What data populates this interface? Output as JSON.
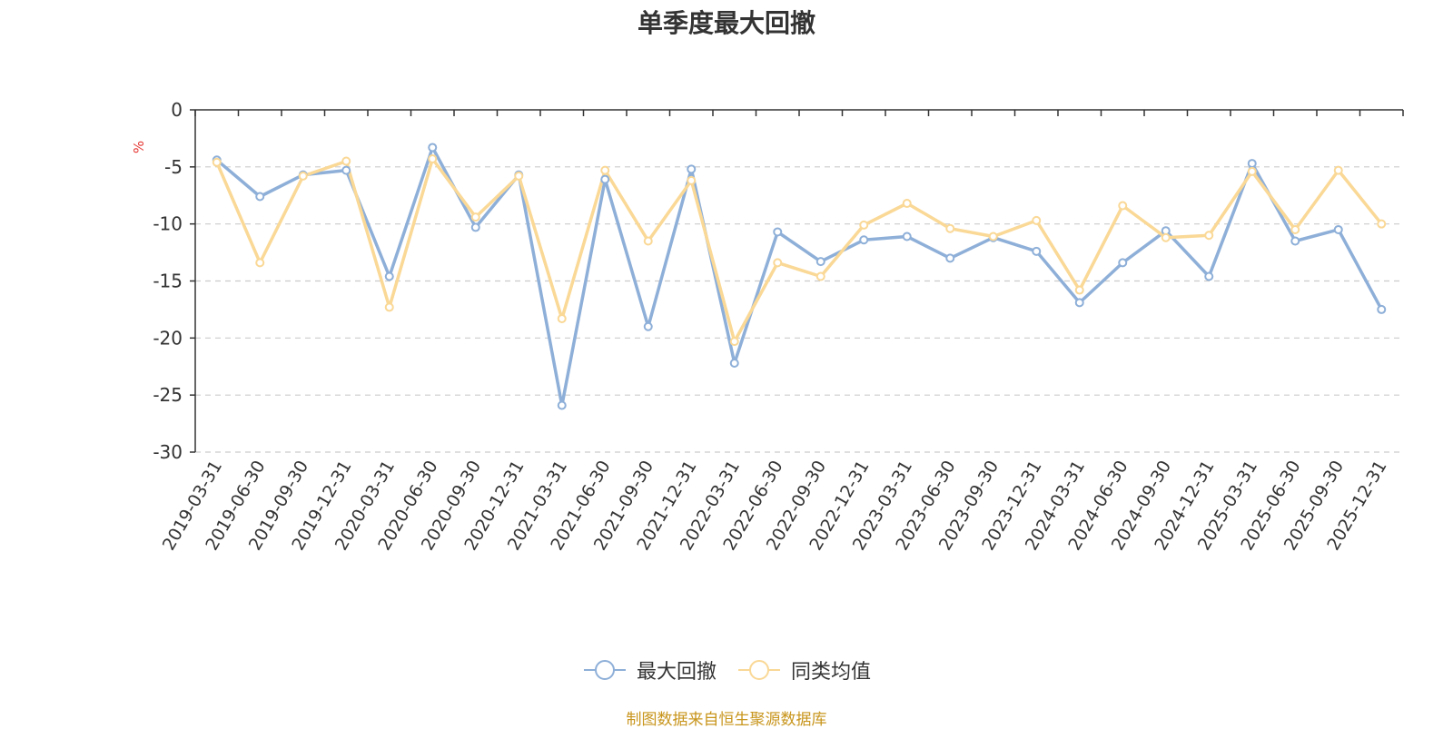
{
  "chart_data": {
    "type": "line",
    "title": "单季度最大回撤",
    "ylabel": "%",
    "ylim": [
      -30,
      0
    ],
    "yticks": [
      0,
      -5,
      -10,
      -15,
      -20,
      -25,
      -30
    ],
    "grid": true,
    "legend_position": "bottom-center",
    "categories": [
      "2019-03-31",
      "2019-06-30",
      "2019-09-30",
      "2019-12-31",
      "2020-03-31",
      "2020-06-30",
      "2020-09-30",
      "2020-12-31",
      "2021-03-31",
      "2021-06-30",
      "2021-09-30",
      "2021-12-31",
      "2022-03-31",
      "2022-06-30",
      "2022-09-30",
      "2022-12-31",
      "2023-03-31",
      "2023-06-30",
      "2023-09-30",
      "2023-12-31",
      "2024-03-31",
      "2024-06-30",
      "2024-09-30",
      "2024-12-31",
      "2025-03-31",
      "2025-06-30",
      "2025-09-30",
      "2025-12-31"
    ],
    "series": [
      {
        "name": "最大回撤",
        "color": "#8eafd8",
        "values": [
          -4.4,
          -7.6,
          -5.7,
          -5.3,
          -14.6,
          -3.3,
          -10.3,
          -5.7,
          -25.9,
          -6.1,
          -19.0,
          -5.2,
          -22.2,
          -10.7,
          -13.3,
          -11.4,
          -11.1,
          -13.0,
          -11.2,
          -12.4,
          -16.9,
          -13.4,
          -10.6,
          -14.6,
          -4.7,
          -11.5,
          -10.5,
          -17.5
        ]
      },
      {
        "name": "同类均值",
        "color": "#fad896",
        "values": [
          -4.6,
          -13.4,
          -5.8,
          -4.5,
          -17.3,
          -4.3,
          -9.4,
          -5.8,
          -18.3,
          -5.3,
          -11.5,
          -6.2,
          -20.3,
          -13.4,
          -14.6,
          -10.1,
          -8.2,
          -10.4,
          -11.1,
          -9.7,
          -15.8,
          -8.4,
          -11.2,
          -11.0,
          -5.4,
          -10.5,
          -5.3,
          -10.0
        ]
      }
    ]
  },
  "source_note": {
    "text": "制图数据来自恒生聚源数据库",
    "color": "#c8951c"
  },
  "colors": {
    "axis": "#333333",
    "grid": "#cccccc",
    "ylabel": "#e53935"
  }
}
